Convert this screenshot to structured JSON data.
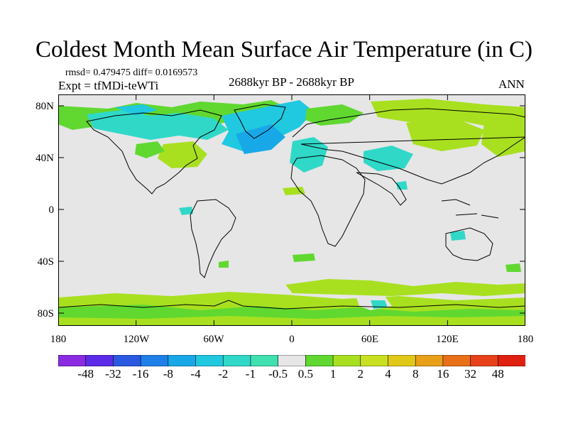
{
  "title": "Coldest Month Mean Surface Air Temperature (in C)",
  "stats_line": "rmsd= 0.479475  diff= 0.0169573",
  "experiment": "Expt = tfMDi-teWTi",
  "period": "2688kyr BP - 2688kyr BP",
  "season": "ANN",
  "lat_labels": [
    "80N",
    "40N",
    "0",
    "40S",
    "80S"
  ],
  "lon_labels": [
    "180",
    "120W",
    "60W",
    "0",
    "60E",
    "120E",
    "180"
  ],
  "colorbar": {
    "labels": [
      "-48",
      "-32",
      "-16",
      "-8",
      "-4",
      "-2",
      "-1",
      "-0.5",
      "0.5",
      "1",
      "2",
      "4",
      "8",
      "16",
      "32",
      "48"
    ],
    "colors": [
      "#8a2be2",
      "#5b2be8",
      "#2a58e0",
      "#1f7fe8",
      "#18a8e8",
      "#20c8e0",
      "#30d8c8",
      "#40e0b0",
      "#e6e6e6",
      "#60d830",
      "#a8e020",
      "#c8e020",
      "#e0c818",
      "#e8a018",
      "#e87018",
      "#e84018",
      "#e02010"
    ]
  },
  "colors": {
    "neutral": "#e6e6e6",
    "coast": "#000000"
  }
}
